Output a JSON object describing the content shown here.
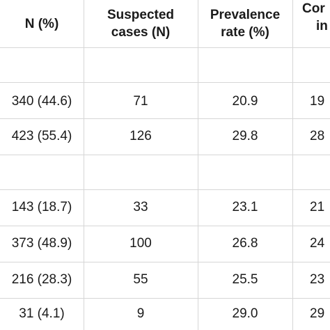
{
  "table": {
    "headers": {
      "n_pct": "N (%)",
      "suspected": [
        "Suspected",
        "cases (N)"
      ],
      "prevalence": [
        "Prevalence",
        "rate (%)"
      ],
      "confirmed_partial": [
        "Cor",
        "in"
      ]
    },
    "rows": [
      {
        "n": "340 (44.6)",
        "suspected": "71",
        "prevalence": "20.9",
        "confirmed_partial": "19"
      },
      {
        "n": "423 (55.4)",
        "suspected": "126",
        "prevalence": "29.8",
        "confirmed_partial": "28"
      },
      {
        "n": "143 (18.7)",
        "suspected": "33",
        "prevalence": "23.1",
        "confirmed_partial": "21"
      },
      {
        "n": "373 (48.9)",
        "suspected": "100",
        "prevalence": "26.8",
        "confirmed_partial": "24"
      },
      {
        "n": "216 (28.3)",
        "suspected": "55",
        "prevalence": "25.5",
        "confirmed_partial": "23"
      },
      {
        "n": "31 (4.1)",
        "suspected": "9",
        "prevalence": "29.0",
        "confirmed_partial": "29"
      }
    ]
  }
}
